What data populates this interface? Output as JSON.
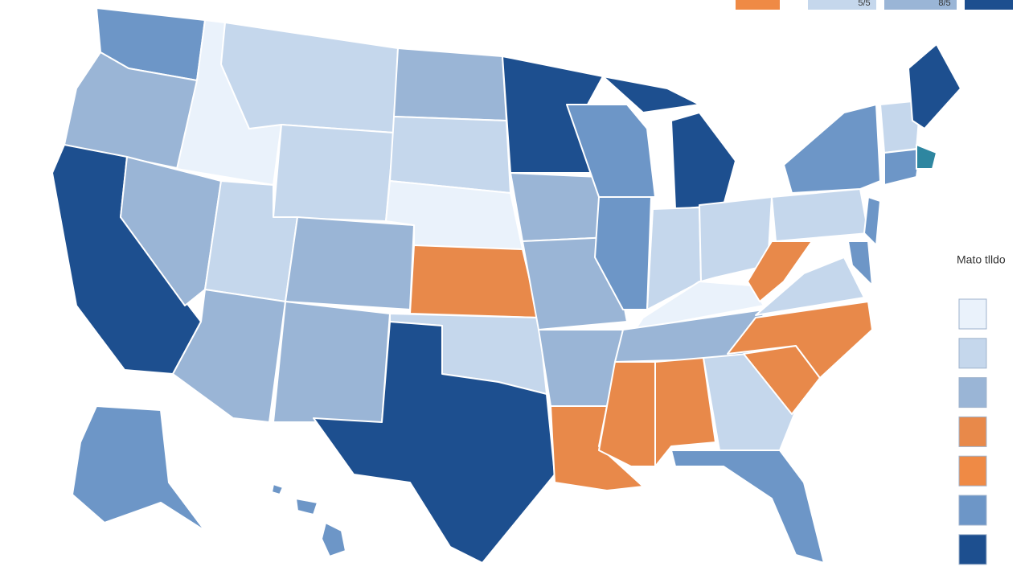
{
  "legend": {
    "title": "Mato tlldo",
    "colors": [
      "#eaf2fb",
      "#c5d7ec",
      "#9ab5d6",
      "#e8894a",
      "#ef8a45",
      "#6d96c7",
      "#1d4f8f"
    ]
  },
  "top_labels": [
    "5/5",
    "8/5"
  ]
}
